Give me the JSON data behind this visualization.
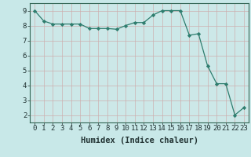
{
  "xlabel": "Humidex (Indice chaleur)",
  "x": [
    0,
    1,
    2,
    3,
    4,
    5,
    6,
    7,
    8,
    9,
    10,
    11,
    12,
    13,
    14,
    15,
    16,
    17,
    18,
    19,
    20,
    21,
    22,
    23
  ],
  "y": [
    9.0,
    8.3,
    8.1,
    8.1,
    8.1,
    8.1,
    7.8,
    7.8,
    7.8,
    7.75,
    8.0,
    8.2,
    8.2,
    8.7,
    9.0,
    9.0,
    9.0,
    7.35,
    7.45,
    5.3,
    4.1,
    4.1,
    2.0,
    2.5
  ],
  "line_color": "#2e7d6e",
  "marker": "D",
  "marker_size": 2.2,
  "background_color": "#c8e8e8",
  "plot_bg_color": "#cce8e8",
  "grid_color_major": "#b8c8c0",
  "grid_color_minor": "#ddc8c8",
  "ylim": [
    1.5,
    9.5
  ],
  "xlim": [
    -0.5,
    23.5
  ],
  "yticks": [
    2,
    3,
    4,
    5,
    6,
    7,
    8,
    9
  ],
  "xticks": [
    0,
    1,
    2,
    3,
    4,
    5,
    6,
    7,
    8,
    9,
    10,
    11,
    12,
    13,
    14,
    15,
    16,
    17,
    18,
    19,
    20,
    21,
    22,
    23
  ],
  "tick_label_fontsize": 6.5,
  "xlabel_fontsize": 7.5,
  "spine_color": "#336655"
}
